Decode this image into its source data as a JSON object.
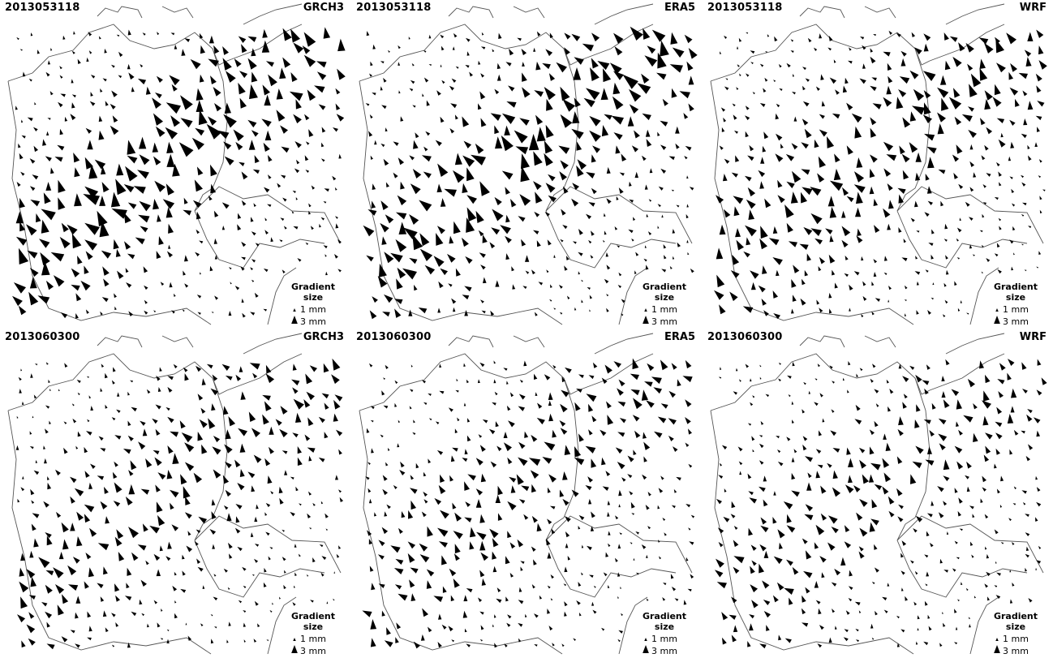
{
  "panels": [
    {
      "date": "2013053118",
      "model": "GRCH3",
      "intensity": 1.6
    },
    {
      "date": "2013053118",
      "model": "ERA5",
      "intensity": 1.5
    },
    {
      "date": "2013053118",
      "model": "WRF",
      "intensity": 1.3
    },
    {
      "date": "2013060300",
      "model": "GRCH3",
      "intensity": 1.0
    },
    {
      "date": "2013060300",
      "model": "ERA5",
      "intensity": 0.9
    },
    {
      "date": "2013060300",
      "model": "WRF",
      "intensity": 0.85
    }
  ],
  "legend": {
    "title": "Gradient size",
    "small": "1 mm",
    "large": "3 mm"
  },
  "colors": {
    "symbol": "#000000",
    "border": "#555555",
    "background": "#ffffff"
  }
}
